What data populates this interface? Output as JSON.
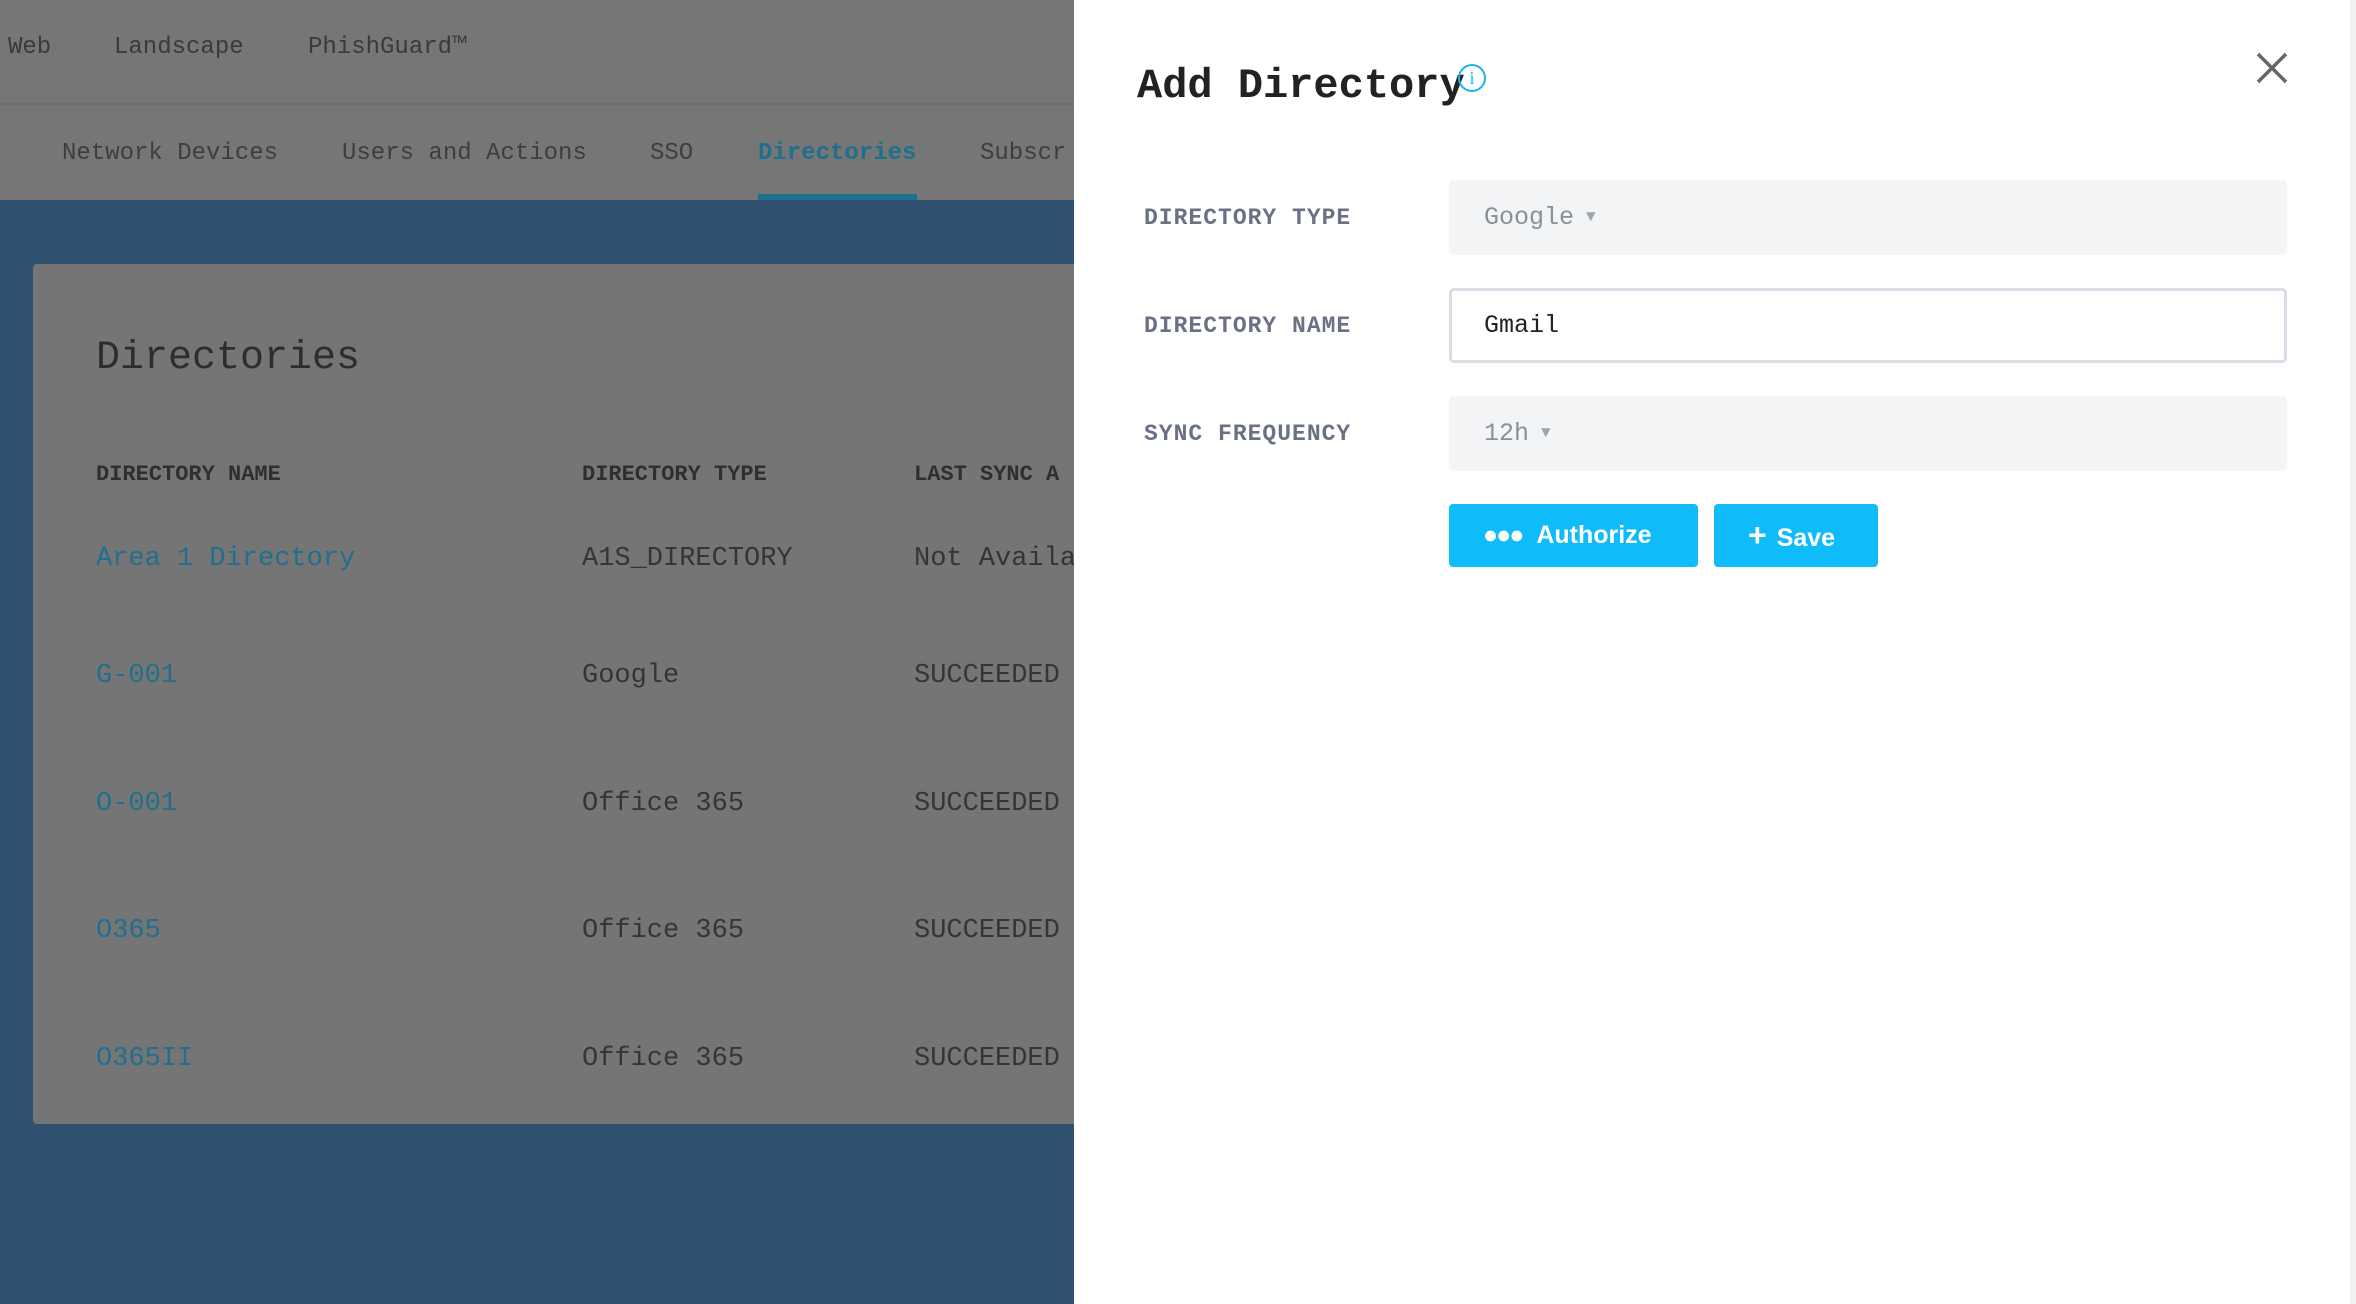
{
  "top_nav": {
    "items": [
      "Web",
      "Landscape",
      "PhishGuard™"
    ]
  },
  "tabs": {
    "items": [
      "Network Devices",
      "Users and Actions",
      "SSO",
      "Directories",
      "Subscr"
    ],
    "active": "Directories"
  },
  "card": {
    "title": "Directories",
    "columns": [
      "DIRECTORY NAME",
      "DIRECTORY TYPE",
      "LAST SYNC A"
    ],
    "rows": [
      [
        "Area 1 Directory",
        "A1S_DIRECTORY",
        "Not Availa"
      ],
      [
        "G-001",
        "Google",
        "SUCCEEDED"
      ],
      [
        "O-001",
        "Office 365",
        "SUCCEEDED"
      ],
      [
        "O365",
        "Office 365",
        "SUCCEEDED"
      ],
      [
        "O365II",
        "Office 365",
        "SUCCEEDED"
      ]
    ]
  },
  "panel": {
    "title": "Add Directory",
    "info_icon": "i",
    "fields": {
      "directory_type": {
        "label": "DIRECTORY TYPE",
        "value": "Google"
      },
      "directory_name": {
        "label": "DIRECTORY NAME",
        "value": "Gmail"
      },
      "sync_frequency": {
        "label": "SYNC FREQUENCY",
        "value": "12h"
      }
    },
    "authorize_label": "Authorize",
    "save_label": "Save",
    "colors": {
      "accent": "#0fbcf9",
      "link": "#1f6f8e"
    }
  }
}
